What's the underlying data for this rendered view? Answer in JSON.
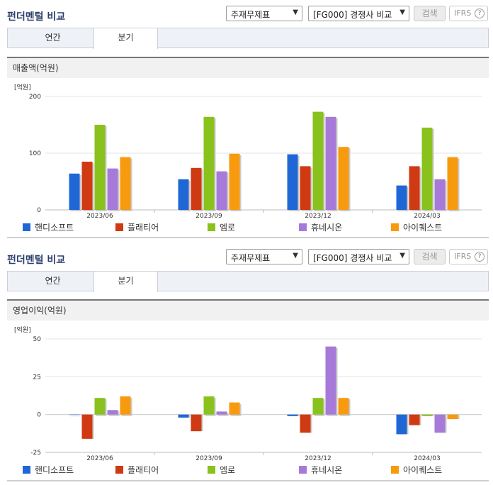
{
  "header": {
    "title": "펀더멘털 비교",
    "select_statement": "주재무제표",
    "select_compare": "[FG000] 경쟁사 비교",
    "search_label": "검색",
    "ifrs_label": "IFRS",
    "help_glyph": "?"
  },
  "tabs": [
    {
      "label": "연간",
      "active": false
    },
    {
      "label": "분기",
      "active": true
    }
  ],
  "colors": {
    "핸디소프트": "#2067d6",
    "플래티어": "#d03a12",
    "엠로": "#89c21c",
    "휴네시온": "#a77ad9",
    "아이퀘스트": "#f79a0e"
  },
  "chart_data": [
    {
      "type": "bar",
      "title": "매출액(억원)",
      "unit": "[억원]",
      "categories": [
        "2023/06",
        "2023/09",
        "2023/12",
        "2024/03"
      ],
      "ylim": [
        0,
        200
      ],
      "yticks": [
        0,
        100,
        200
      ],
      "series": [
        {
          "name": "핸디소프트",
          "values": [
            64,
            54,
            98,
            43
          ]
        },
        {
          "name": "플래티어",
          "values": [
            85,
            74,
            77,
            77
          ]
        },
        {
          "name": "엠로",
          "values": [
            150,
            164,
            173,
            145
          ]
        },
        {
          "name": "휴네시온",
          "values": [
            73,
            68,
            164,
            54
          ]
        },
        {
          "name": "아이퀘스트",
          "values": [
            93,
            99,
            111,
            93
          ]
        }
      ]
    },
    {
      "type": "bar",
      "title": "영업이익(억원)",
      "unit": "[억원]",
      "categories": [
        "2023/06",
        "2023/09",
        "2023/12",
        "2024/03"
      ],
      "ylim": [
        -25,
        50
      ],
      "yticks": [
        -25,
        0,
        25,
        50
      ],
      "series": [
        {
          "name": "핸디소프트",
          "values": [
            0,
            -2,
            -1,
            -13
          ]
        },
        {
          "name": "플래티어",
          "values": [
            -16,
            -11,
            -12,
            -7
          ]
        },
        {
          "name": "엠로",
          "values": [
            11,
            12,
            11,
            -1
          ]
        },
        {
          "name": "휴네시온",
          "values": [
            3,
            2,
            45,
            -12
          ]
        },
        {
          "name": "아이퀘스트",
          "values": [
            12,
            8,
            11,
            -3
          ]
        }
      ]
    }
  ]
}
